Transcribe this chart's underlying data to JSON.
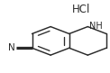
{
  "bond_color": "#2a2a2a",
  "bg_color": "#ffffff",
  "lw": 1.05,
  "figsize": [
    1.22,
    0.81
  ],
  "dpi": 100,
  "hcl_text": "HCl",
  "nh_text": "NH",
  "n_text": "N"
}
